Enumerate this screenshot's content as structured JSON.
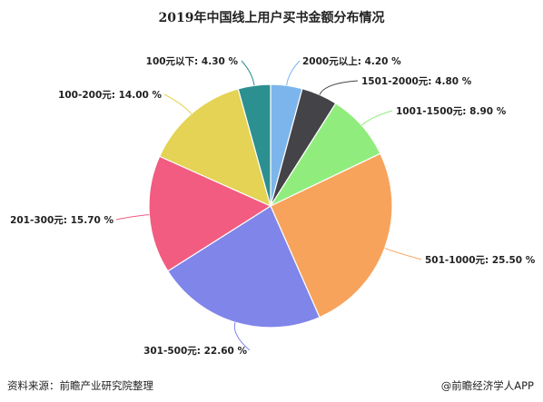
{
  "chart_data": {
    "type": "pie",
    "title": "2019年中国线上用户买书金额分布情况",
    "categories": [
      "2000元以上",
      "1501-2000元",
      "1001-1500元",
      "501-1000元",
      "301-500元",
      "201-300元",
      "100-200元",
      "100元以下"
    ],
    "values": [
      4.2,
      4.8,
      8.9,
      25.5,
      22.6,
      15.7,
      14.0,
      4.3
    ],
    "labels": [
      "2000元以上: 4.20 %",
      "1501-2000元: 4.80 %",
      "1001-1500元: 8.90 %",
      "501-1000元: 25.50 %",
      "301-500元: 22.60 %",
      "201-300元: 15.70 %",
      "100-200元: 14.00 %",
      "100元以下: 4.30 %"
    ],
    "colors": [
      "#7cb5ec",
      "#434348",
      "#90ed7d",
      "#f7a35c",
      "#8085e9",
      "#f15c80",
      "#e4d354",
      "#2b908f"
    ],
    "legend": "none",
    "grid": false
  },
  "footer": {
    "source": "资料来源：前瞻产业研究院整理",
    "brand": "@前瞻经济学人APP"
  }
}
